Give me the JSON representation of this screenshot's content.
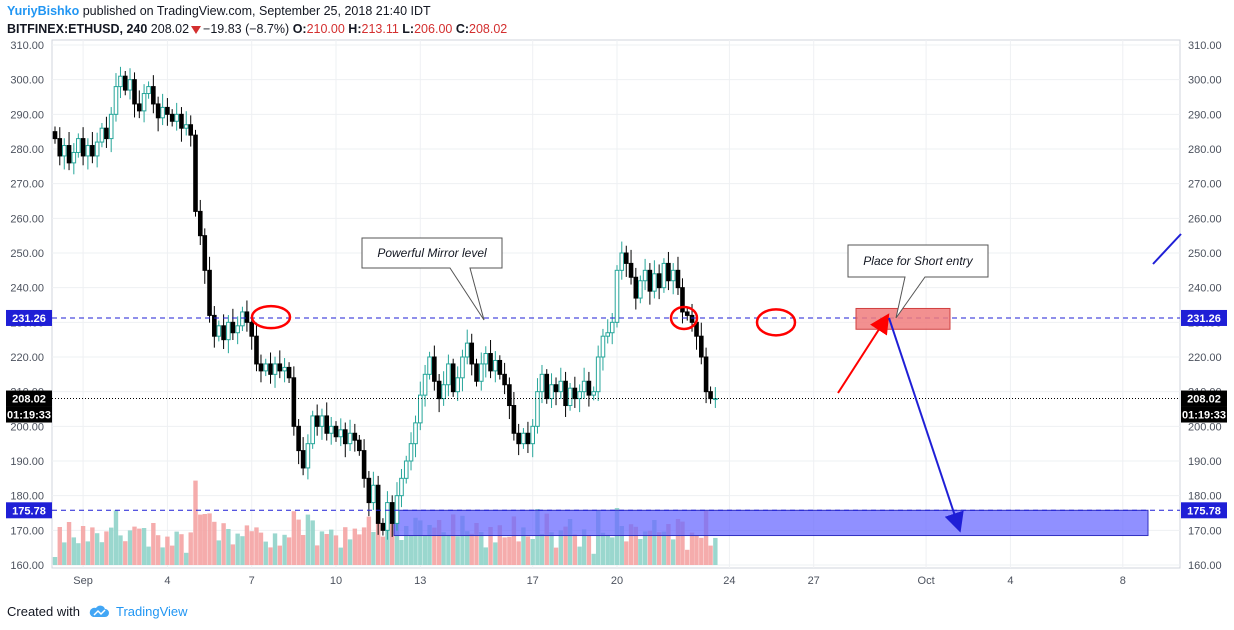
{
  "header": {
    "author": "YuriyBishko",
    "published": " published on TradingView.com, September 25, 2018 21:40 IDT",
    "symbol": "BITFINEX:ETHUSD, 240",
    "last": "208.02",
    "change": "−19.83 (−8.7%)",
    "o_label": "O:",
    "o_value": "210.00",
    "h_label": "H:",
    "h_value": "213.11",
    "l_label": "L:",
    "l_value": "206.00",
    "c_label": "C:",
    "c_value": "208.02"
  },
  "footer": {
    "created_with": "Created with",
    "brand": "TradingView"
  },
  "colors": {
    "up": "#26a69a",
    "down": "#000000",
    "vol_up": "#8fd3c9",
    "vol_down": "#f4a3a3",
    "mirror_line": "#1f1fd6",
    "support_zone": "#6b6bff",
    "short_zone": "#f07c7c",
    "red_arrow": "#ff0000",
    "blue_arrow": "#1f1fd6",
    "circle": "#ff0000"
  },
  "chart_data": {
    "type": "candlestick",
    "title": "BITFINEX:ETHUSD, 240",
    "ylim": [
      160,
      310
    ],
    "y_ticks": [
      "160.00",
      "170.00",
      "180.00",
      "190.00",
      "200.00",
      "210.00",
      "220.00",
      "230.00",
      "240.00",
      "250.00",
      "260.00",
      "270.00",
      "280.00",
      "290.00",
      "300.00",
      "310.00"
    ],
    "x_ticks": [
      {
        "label": "Sep",
        "day": 1
      },
      {
        "label": "4",
        "day": 4
      },
      {
        "label": "7",
        "day": 7
      },
      {
        "label": "10",
        "day": 10
      },
      {
        "label": "13",
        "day": 13
      },
      {
        "label": "17",
        "day": 17
      },
      {
        "label": "20",
        "day": 20
      },
      {
        "label": "24",
        "day": 24
      },
      {
        "label": "27",
        "day": 27
      },
      {
        "label": "Oct",
        "day": 31
      },
      {
        "label": "4",
        "day": 34
      },
      {
        "label": "8",
        "day": 38
      }
    ],
    "price_badges": [
      {
        "label": "231.26",
        "value": 231.26
      },
      {
        "label": "208.02",
        "value": 208.02
      },
      {
        "label": "175.78",
        "value": 175.78
      }
    ],
    "countdown": "01:19:33",
    "annotations": {
      "mirror_callout": "Powerful Mirror level",
      "short_callout": "Place for Short entry"
    },
    "series": [
      {
        "day": 0.0,
        "c": 283.0
      },
      {
        "day": 0.17,
        "c": 278.0
      },
      {
        "day": 0.33,
        "c": 281.0
      },
      {
        "day": 0.5,
        "c": 276.0
      },
      {
        "day": 0.67,
        "c": 279.0
      },
      {
        "day": 0.83,
        "c": 283.0
      },
      {
        "day": 1.0,
        "c": 278.0
      },
      {
        "day": 1.17,
        "c": 281.0
      },
      {
        "day": 1.33,
        "c": 278.0
      },
      {
        "day": 1.5,
        "c": 282.0
      },
      {
        "day": 1.67,
        "c": 286.0
      },
      {
        "day": 1.83,
        "c": 283.0
      },
      {
        "day": 2.0,
        "c": 290.0
      },
      {
        "day": 2.17,
        "c": 298.0
      },
      {
        "day": 2.33,
        "c": 301.0
      },
      {
        "day": 2.5,
        "c": 297.0
      },
      {
        "day": 2.67,
        "c": 300.0
      },
      {
        "day": 2.83,
        "c": 293.0
      },
      {
        "day": 3.0,
        "c": 291.0
      },
      {
        "day": 3.17,
        "c": 296.0
      },
      {
        "day": 3.33,
        "c": 298.0
      },
      {
        "day": 3.5,
        "c": 293.0
      },
      {
        "day": 3.67,
        "c": 289.0
      },
      {
        "day": 3.83,
        "c": 292.0
      },
      {
        "day": 4.0,
        "c": 290.0
      },
      {
        "day": 4.17,
        "c": 288.0
      },
      {
        "day": 4.33,
        "c": 290.0
      },
      {
        "day": 4.5,
        "c": 286.0
      },
      {
        "day": 4.67,
        "c": 287.0
      },
      {
        "day": 4.83,
        "c": 284.0
      },
      {
        "day": 5.0,
        "c": 262.0
      },
      {
        "day": 5.17,
        "c": 255.0
      },
      {
        "day": 5.33,
        "c": 245.0
      },
      {
        "day": 5.5,
        "c": 232.0
      },
      {
        "day": 5.67,
        "c": 226.0
      },
      {
        "day": 5.83,
        "c": 229.0
      },
      {
        "day": 6.0,
        "c": 225.0
      },
      {
        "day": 6.17,
        "c": 230.0
      },
      {
        "day": 6.33,
        "c": 227.0
      },
      {
        "day": 6.5,
        "c": 229.0
      },
      {
        "day": 6.67,
        "c": 233.0
      },
      {
        "day": 6.83,
        "c": 230.0
      },
      {
        "day": 7.0,
        "c": 226.0
      },
      {
        "day": 7.17,
        "c": 218.0
      },
      {
        "day": 7.33,
        "c": 216.0
      },
      {
        "day": 7.5,
        "c": 218.0
      },
      {
        "day": 7.67,
        "c": 215.0
      },
      {
        "day": 7.83,
        "c": 218.0
      },
      {
        "day": 8.0,
        "c": 216.0
      },
      {
        "day": 8.17,
        "c": 217.0
      },
      {
        "day": 8.33,
        "c": 214.0
      },
      {
        "day": 8.5,
        "c": 200.0
      },
      {
        "day": 8.67,
        "c": 193.0
      },
      {
        "day": 8.83,
        "c": 188.0
      },
      {
        "day": 9.0,
        "c": 195.0
      },
      {
        "day": 9.17,
        "c": 203.0
      },
      {
        "day": 9.33,
        "c": 200.0
      },
      {
        "day": 9.5,
        "c": 203.0
      },
      {
        "day": 9.67,
        "c": 198.0
      },
      {
        "day": 9.83,
        "c": 200.0
      },
      {
        "day": 10.0,
        "c": 197.0
      },
      {
        "day": 10.17,
        "c": 199.0
      },
      {
        "day": 10.33,
        "c": 195.0
      },
      {
        "day": 10.5,
        "c": 198.0
      },
      {
        "day": 10.67,
        "c": 196.0
      },
      {
        "day": 10.83,
        "c": 193.0
      },
      {
        "day": 11.0,
        "c": 185.0
      },
      {
        "day": 11.17,
        "c": 178.0
      },
      {
        "day": 11.33,
        "c": 183.0
      },
      {
        "day": 11.5,
        "c": 172.0
      },
      {
        "day": 11.67,
        "c": 170.0
      },
      {
        "day": 11.83,
        "c": 178.0
      },
      {
        "day": 12.0,
        "c": 172.0
      },
      {
        "day": 12.17,
        "c": 180.0
      },
      {
        "day": 12.33,
        "c": 185.0
      },
      {
        "day": 12.5,
        "c": 190.0
      },
      {
        "day": 12.67,
        "c": 195.0
      },
      {
        "day": 12.83,
        "c": 201.0
      },
      {
        "day": 13.0,
        "c": 209.0
      },
      {
        "day": 13.17,
        "c": 215.0
      },
      {
        "day": 13.33,
        "c": 220.0
      },
      {
        "day": 13.5,
        "c": 213.0
      },
      {
        "day": 13.67,
        "c": 208.0
      },
      {
        "day": 13.83,
        "c": 212.0
      },
      {
        "day": 14.0,
        "c": 218.0
      },
      {
        "day": 14.17,
        "c": 210.0
      },
      {
        "day": 14.33,
        "c": 214.0
      },
      {
        "day": 14.5,
        "c": 220.0
      },
      {
        "day": 14.67,
        "c": 224.0
      },
      {
        "day": 14.83,
        "c": 218.0
      },
      {
        "day": 15.0,
        "c": 213.0
      },
      {
        "day": 15.17,
        "c": 218.0
      },
      {
        "day": 15.33,
        "c": 221.0
      },
      {
        "day": 15.5,
        "c": 216.0
      },
      {
        "day": 15.67,
        "c": 219.0
      },
      {
        "day": 15.83,
        "c": 215.0
      },
      {
        "day": 16.0,
        "c": 212.0
      },
      {
        "day": 16.17,
        "c": 206.0
      },
      {
        "day": 16.33,
        "c": 198.0
      },
      {
        "day": 16.5,
        "c": 195.0
      },
      {
        "day": 16.67,
        "c": 198.0
      },
      {
        "day": 16.83,
        "c": 195.0
      },
      {
        "day": 17.0,
        "c": 200.0
      },
      {
        "day": 17.17,
        "c": 210.0
      },
      {
        "day": 17.33,
        "c": 215.0
      },
      {
        "day": 17.5,
        "c": 208.0
      },
      {
        "day": 17.67,
        "c": 212.0
      },
      {
        "day": 17.83,
        "c": 210.0
      },
      {
        "day": 18.0,
        "c": 213.0
      },
      {
        "day": 18.17,
        "c": 206.0
      },
      {
        "day": 18.33,
        "c": 211.0
      },
      {
        "day": 18.5,
        "c": 208.0
      },
      {
        "day": 18.67,
        "c": 210.0
      },
      {
        "day": 18.83,
        "c": 213.0
      },
      {
        "day": 19.0,
        "c": 209.0
      },
      {
        "day": 19.17,
        "c": 210.0
      },
      {
        "day": 19.33,
        "c": 220.0
      },
      {
        "day": 19.5,
        "c": 226.0
      },
      {
        "day": 19.67,
        "c": 227.0
      },
      {
        "day": 19.83,
        "c": 230.0
      },
      {
        "day": 20.0,
        "c": 245.0
      },
      {
        "day": 20.17,
        "c": 250.0
      },
      {
        "day": 20.33,
        "c": 247.0
      },
      {
        "day": 20.5,
        "c": 243.0
      },
      {
        "day": 20.67,
        "c": 237.0
      },
      {
        "day": 20.83,
        "c": 242.0
      },
      {
        "day": 21.0,
        "c": 245.0
      },
      {
        "day": 21.17,
        "c": 239.0
      },
      {
        "day": 21.33,
        "c": 244.0
      },
      {
        "day": 21.5,
        "c": 240.0
      },
      {
        "day": 21.67,
        "c": 247.0
      },
      {
        "day": 21.83,
        "c": 242.0
      },
      {
        "day": 22.0,
        "c": 245.0
      },
      {
        "day": 22.17,
        "c": 240.0
      },
      {
        "day": 22.33,
        "c": 233.0
      },
      {
        "day": 22.5,
        "c": 232.0
      },
      {
        "day": 22.67,
        "c": 230.0
      },
      {
        "day": 22.83,
        "c": 226.0
      },
      {
        "day": 23.0,
        "c": 220.0
      },
      {
        "day": 23.17,
        "c": 210.0
      },
      {
        "day": 23.33,
        "c": 208.0
      },
      {
        "day": 23.5,
        "c": 208.02
      }
    ]
  }
}
